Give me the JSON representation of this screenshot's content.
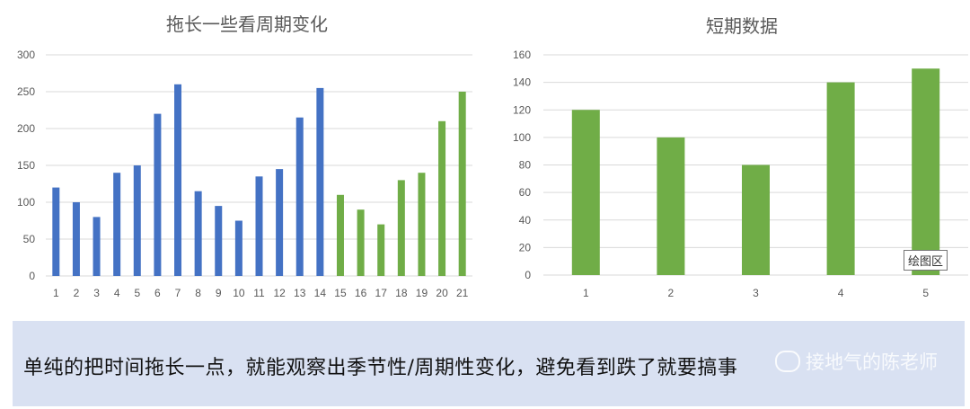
{
  "chart_data": [
    {
      "type": "bar",
      "title": "拖长一些看周期变化",
      "categories": [
        "1",
        "2",
        "3",
        "4",
        "5",
        "6",
        "7",
        "8",
        "9",
        "10",
        "11",
        "12",
        "13",
        "14",
        "15",
        "16",
        "17",
        "18",
        "19",
        "20",
        "21"
      ],
      "values": [
        120,
        100,
        80,
        140,
        150,
        220,
        260,
        115,
        95,
        75,
        135,
        145,
        215,
        255,
        110,
        90,
        70,
        130,
        140,
        210,
        250
      ],
      "bar_colors": [
        "#4472c4",
        "#4472c4",
        "#4472c4",
        "#4472c4",
        "#4472c4",
        "#4472c4",
        "#4472c4",
        "#4472c4",
        "#4472c4",
        "#4472c4",
        "#4472c4",
        "#4472c4",
        "#4472c4",
        "#4472c4",
        "#70ad47",
        "#70ad47",
        "#70ad47",
        "#70ad47",
        "#70ad47",
        "#70ad47",
        "#70ad47"
      ],
      "ylim": [
        0,
        300
      ],
      "yticks": [
        0,
        50,
        100,
        150,
        200,
        250,
        300
      ],
      "grid": true
    },
    {
      "type": "bar",
      "title": "短期数据",
      "categories": [
        "1",
        "2",
        "3",
        "4",
        "5"
      ],
      "values": [
        120,
        100,
        80,
        140,
        150
      ],
      "bar_colors": [
        "#70ad47",
        "#70ad47",
        "#70ad47",
        "#70ad47",
        "#70ad47"
      ],
      "ylim": [
        0,
        160
      ],
      "yticks": [
        0,
        20,
        40,
        60,
        80,
        100,
        120,
        140,
        160
      ],
      "grid": true
    }
  ],
  "caption": {
    "text": "单纯的把时间拖长一点，就能观察出季节性/周期性变化，避免看到跌了就要搞事",
    "watermark": "接地气的陈老师"
  },
  "tooltip": "绘图区",
  "colors": {
    "blue": "#4472c4",
    "green": "#70ad47",
    "caption_bg": "#d9e1f2"
  }
}
